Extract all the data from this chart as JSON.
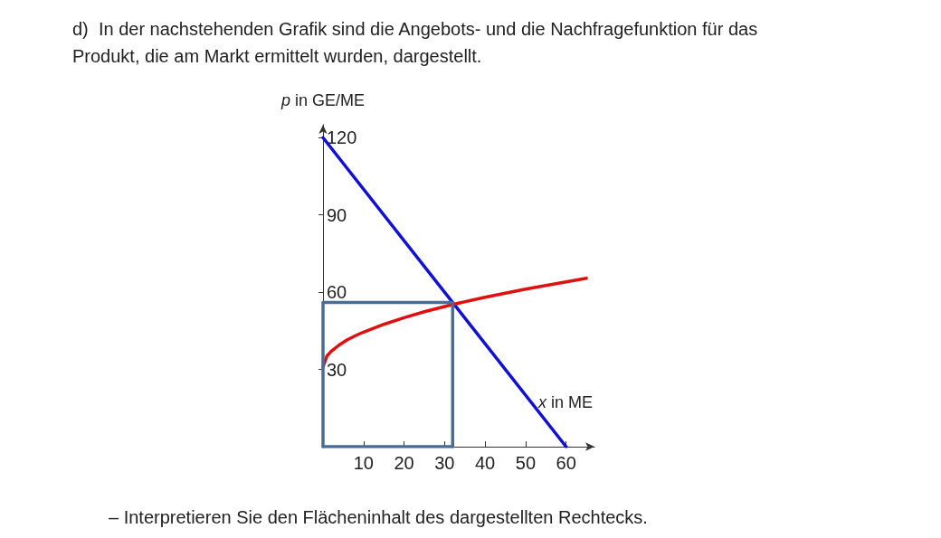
{
  "chart_data": {
    "type": "line",
    "title": "d)  In der nachstehenden Grafik sind die Angebots- und die Nachfragefunktion für das Produkt, die am Markt ermittelt wurden, dargestellt.",
    "xlabel": "x in ME",
    "ylabel": "p in GE/ME",
    "annotations": [
      "– Interpretieren Sie den Flächeninhalt des dargestellten Rechtecks."
    ],
    "xlim": [
      0,
      67
    ],
    "ylim": [
      0,
      125
    ],
    "xticks": [
      10,
      20,
      30,
      40,
      50,
      60
    ],
    "yticks": [
      30,
      60,
      90,
      120
    ],
    "grid": false,
    "marker": "none",
    "line_style": "solid",
    "series": [
      {
        "color": "#1010d8",
        "x": [
          0,
          60
        ],
        "values": [
          120,
          0
        ]
      },
      {
        "color": "#e01010",
        "x": [
          0,
          1,
          2,
          4,
          6,
          8,
          10,
          15,
          20,
          25,
          32,
          40,
          50,
          65
        ],
        "values": [
          31,
          35.3,
          37,
          39.5,
          41.5,
          43.1,
          44.5,
          47.5,
          50.1,
          52.4,
          55.2,
          58,
          61.2,
          65.4
        ]
      },
      {
        "color": "#4a6d96",
        "x": [
          0,
          0,
          32,
          32
        ],
        "values": [
          0,
          56,
          56,
          0
        ]
      },
      {
        "color": "#4a6d96",
        "x": [
          0,
          32
        ],
        "values": [
          0,
          0
        ]
      }
    ]
  }
}
